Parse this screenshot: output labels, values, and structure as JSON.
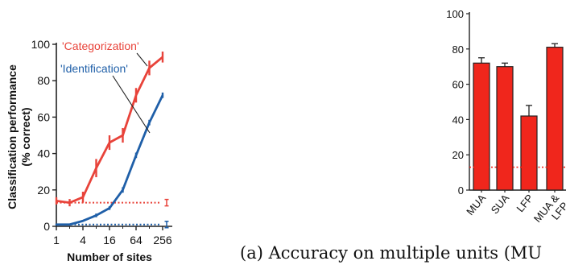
{
  "caption": "(a) Accuracy on multiple units (MU",
  "colors": {
    "red": "#e8433a",
    "blue": "#1f5fa8",
    "bar_fill": "#f0261c"
  },
  "chart_data": [
    {
      "type": "line",
      "xlabel": "Number of sites",
      "ylabel": "Classification performance (% correct)",
      "x_scale": "log2",
      "xlim": [
        1,
        256
      ],
      "ylim": [
        0,
        100
      ],
      "x_ticks": [
        "1",
        "4",
        "16",
        "64",
        "256"
      ],
      "y_ticks": [
        "0",
        "20",
        "40",
        "60",
        "80",
        "100"
      ],
      "x": [
        1,
        2,
        4,
        8,
        16,
        32,
        64,
        128,
        256
      ],
      "series": [
        {
          "name": "'Categorization'",
          "color": "#e8433a",
          "values": [
            14,
            13,
            16,
            32,
            46,
            50,
            72,
            87,
            93
          ],
          "errors": [
            2,
            2,
            3,
            5,
            4,
            4,
            4,
            4,
            3
          ],
          "chance": 13
        },
        {
          "name": "'Identification'",
          "color": "#1f5fa8",
          "values": [
            1,
            1,
            3,
            6,
            10,
            20,
            39,
            57,
            72
          ],
          "errors": [
            0.5,
            0.5,
            0.5,
            1,
            1,
            1.5,
            1.5,
            1.5,
            1.5
          ],
          "chance": 1
        }
      ],
      "legend": "top-left, labels with leader lines"
    },
    {
      "type": "bar",
      "categories": [
        "MUA",
        "SUA",
        "LFP",
        "MUA & LFP"
      ],
      "values": [
        72,
        70,
        42,
        81
      ],
      "errors": [
        3,
        2,
        6,
        2
      ],
      "ylim": [
        0,
        100
      ],
      "y_ticks": [
        "0",
        "20",
        "40",
        "60",
        "80",
        "100"
      ],
      "chance": 13
    }
  ]
}
